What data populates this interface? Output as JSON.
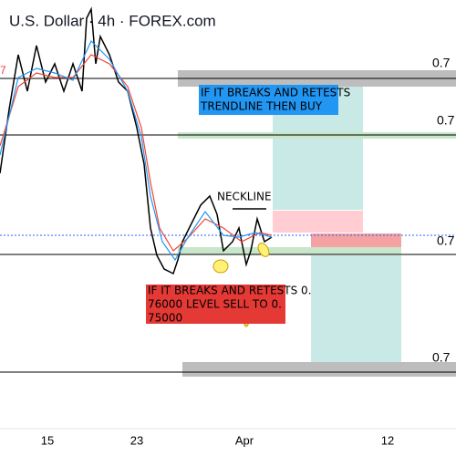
{
  "header": {
    "title": "U.S. Dollar · 4h · FOREX.com",
    "left_label": "7"
  },
  "price_labels": [
    "0.7",
    "0.7",
    "0.7",
    "0.7"
  ],
  "annotations": {
    "buy_note": [
      "IF IT BREAKS AND RETESTS",
      "TRENDLINE THEN BUY"
    ],
    "neckline": "NECKLINE",
    "sell_note": [
      "IF IT BREAKS AND RETESTS 0.",
      "76000 LEVEL SELL TO 0.",
      "75000"
    ]
  },
  "x_axis": {
    "labels": [
      "15",
      "23",
      "Apr",
      "12"
    ]
  }
}
